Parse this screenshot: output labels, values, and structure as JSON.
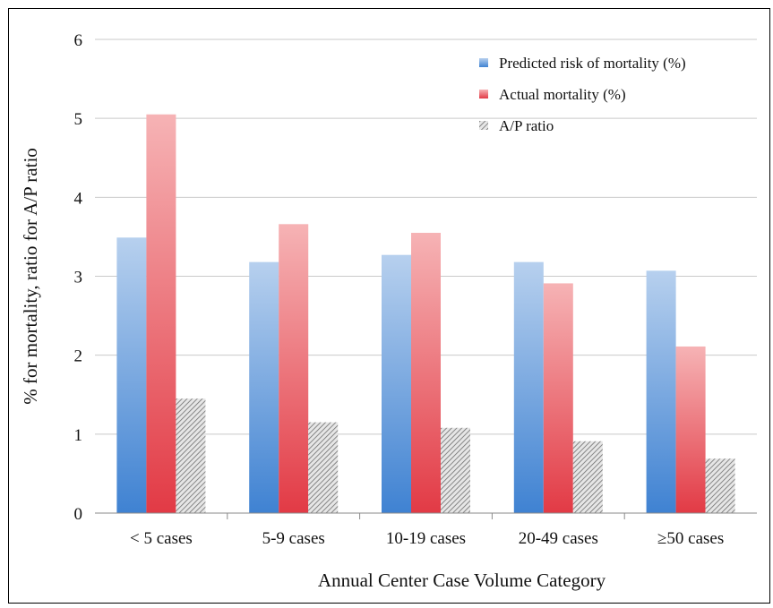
{
  "chart_data": {
    "type": "bar",
    "categories": [
      "< 5 cases",
      "5-9 cases",
      "10-19 cases",
      "20-49 cases",
      "≥50 cases"
    ],
    "series": [
      {
        "name": "Predicted risk of mortality (%)",
        "values": [
          3.49,
          3.18,
          3.27,
          3.18,
          3.07
        ],
        "color": "#4f8fd6"
      },
      {
        "name": "Actual mortality (%)",
        "values": [
          5.05,
          3.66,
          3.55,
          2.91,
          2.11
        ],
        "color": "#e8474f"
      },
      {
        "name": "A/P ratio",
        "values": [
          1.45,
          1.15,
          1.08,
          0.91,
          0.69
        ],
        "color": "#9a9a9a"
      }
    ],
    "title": "",
    "xlabel": "Annual Center Case Volume Category",
    "ylabel": "% for mortality, ratio for A/P ratio",
    "ylim": [
      0,
      6
    ],
    "yticks": [
      0,
      1,
      2,
      3,
      4,
      5,
      6
    ],
    "grid": true,
    "legend_position": "top-right"
  }
}
